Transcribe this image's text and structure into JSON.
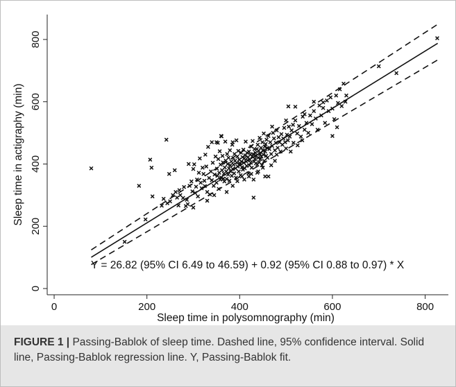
{
  "chart_data": {
    "type": "scatter",
    "xlabel": "Sleep time in polysomnography (min)",
    "ylabel": "Sleep time in actigraphy (min)",
    "xlim": [
      -15,
      850
    ],
    "ylim": [
      -20,
      880
    ],
    "xticks": [
      "0",
      "200",
      "400",
      "600",
      "800"
    ],
    "yticks": [
      "0",
      "200",
      "400",
      "600",
      "800"
    ],
    "grid": false,
    "annotation": "Y = 26.82 (95% CI 6.49 to 46.59) + 0.92 (95% CI 0.88 to 0.97) * X",
    "regression": {
      "intercept": 26.82,
      "slope": 0.92
    },
    "ci_lower": {
      "intercept": 6.49,
      "slope": 0.88
    },
    "ci_upper": {
      "intercept": 46.59,
      "slope": 0.97
    },
    "line_range": [
      80,
      827
    ],
    "points": [
      [
        80,
        386
      ],
      [
        152,
        150
      ],
      [
        183,
        330
      ],
      [
        197,
        222
      ],
      [
        207,
        414
      ],
      [
        210,
        388
      ],
      [
        212,
        296
      ],
      [
        242,
        478
      ],
      [
        248,
        368
      ],
      [
        262,
        310
      ],
      [
        265,
        292
      ],
      [
        268,
        267
      ],
      [
        272,
        300
      ],
      [
        278,
        291
      ],
      [
        284,
        265
      ],
      [
        286,
        285
      ],
      [
        288,
        271
      ],
      [
        292,
        330
      ],
      [
        296,
        344
      ],
      [
        298,
        312
      ],
      [
        300,
        384
      ],
      [
        302,
        399
      ],
      [
        304,
        307
      ],
      [
        306,
        327
      ],
      [
        308,
        350
      ],
      [
        310,
        296
      ],
      [
        312,
        372
      ],
      [
        314,
        418
      ],
      [
        316,
        340
      ],
      [
        318,
        322
      ],
      [
        320,
        388
      ],
      [
        322,
        368
      ],
      [
        324,
        346
      ],
      [
        325,
        329
      ],
      [
        326,
        430
      ],
      [
        328,
        392
      ],
      [
        330,
        310
      ],
      [
        332,
        455
      ],
      [
        334,
        355
      ],
      [
        336,
        302
      ],
      [
        338,
        376
      ],
      [
        340,
        348
      ],
      [
        342,
        404
      ],
      [
        344,
        330
      ],
      [
        346,
        366
      ],
      [
        348,
        424
      ],
      [
        350,
        340
      ],
      [
        351,
        385
      ],
      [
        352,
        362
      ],
      [
        353,
        468
      ],
      [
        354,
        416
      ],
      [
        356,
        372
      ],
      [
        357,
        441
      ],
      [
        358,
        350
      ],
      [
        359,
        398
      ],
      [
        360,
        357
      ],
      [
        361,
        489
      ],
      [
        362,
        380
      ],
      [
        363,
        426
      ],
      [
        364,
        405
      ],
      [
        365,
        353
      ],
      [
        366,
        369
      ],
      [
        367,
        344
      ],
      [
        368,
        389
      ],
      [
        369,
        472
      ],
      [
        370,
        411
      ],
      [
        371,
        376
      ],
      [
        372,
        352
      ],
      [
        373,
        432
      ],
      [
        374,
        400
      ],
      [
        375,
        366
      ],
      [
        376,
        420
      ],
      [
        377,
        386
      ],
      [
        378,
        346
      ],
      [
        379,
        444
      ],
      [
        380,
        396
      ],
      [
        381,
        376
      ],
      [
        382,
        408
      ],
      [
        383,
        362
      ],
      [
        384,
        462
      ],
      [
        385,
        384
      ],
      [
        386,
        420
      ],
      [
        387,
        398
      ],
      [
        388,
        370
      ],
      [
        389,
        432
      ],
      [
        390,
        410
      ],
      [
        391,
        386
      ],
      [
        392,
        356
      ],
      [
        393,
        476
      ],
      [
        394,
        404
      ],
      [
        395,
        424
      ],
      [
        396,
        392
      ],
      [
        397,
        442
      ],
      [
        398,
        376
      ],
      [
        399,
        414
      ],
      [
        400,
        398
      ],
      [
        401,
        402
      ],
      [
        402,
        364
      ],
      [
        403,
        436
      ],
      [
        404,
        408
      ],
      [
        405,
        390
      ],
      [
        406,
        422
      ],
      [
        407,
        382
      ],
      [
        408,
        446
      ],
      [
        409,
        404
      ],
      [
        410,
        418
      ],
      [
        411,
        386
      ],
      [
        412,
        428
      ],
      [
        413,
        472
      ],
      [
        414,
        408
      ],
      [
        415,
        394
      ],
      [
        416,
        436
      ],
      [
        417,
        412
      ],
      [
        418,
        422
      ],
      [
        419,
        370
      ],
      [
        420,
        440
      ],
      [
        421,
        396
      ],
      [
        422,
        414
      ],
      [
        423,
        430
      ],
      [
        424,
        404
      ],
      [
        425,
        456
      ],
      [
        426,
        388
      ],
      [
        427,
        424
      ],
      [
        428,
        474
      ],
      [
        429,
        432
      ],
      [
        430,
        292
      ],
      [
        431,
        408
      ],
      [
        432,
        448
      ],
      [
        433,
        416
      ],
      [
        434,
        436
      ],
      [
        435,
        402
      ],
      [
        436,
        426
      ],
      [
        437,
        448
      ],
      [
        438,
        398
      ],
      [
        439,
        462
      ],
      [
        440,
        420
      ],
      [
        441,
        442
      ],
      [
        442,
        406
      ],
      [
        443,
        484
      ],
      [
        444,
        432
      ],
      [
        445,
        416
      ],
      [
        446,
        452
      ],
      [
        447,
        424
      ],
      [
        448,
        396
      ],
      [
        449,
        470
      ],
      [
        450,
        444
      ],
      [
        451,
        430
      ],
      [
        452,
        498
      ],
      [
        453,
        410
      ],
      [
        454,
        456
      ],
      [
        455,
        440
      ],
      [
        456,
        464
      ],
      [
        457,
        426
      ],
      [
        458,
        478
      ],
      [
        459,
        452
      ],
      [
        460,
        420
      ],
      [
        462,
        490
      ],
      [
        464,
        448
      ],
      [
        466,
        470
      ],
      [
        468,
        432
      ],
      [
        470,
        458
      ],
      [
        472,
        500
      ],
      [
        474,
        482
      ],
      [
        476,
        444
      ],
      [
        478,
        468
      ],
      [
        480,
        508
      ],
      [
        482,
        452
      ],
      [
        484,
        486
      ],
      [
        486,
        470
      ],
      [
        488,
        440
      ],
      [
        490,
        496
      ],
      [
        492,
        462
      ],
      [
        494,
        482
      ],
      [
        496,
        516
      ],
      [
        498,
        470
      ],
      [
        500,
        450
      ],
      [
        502,
        494
      ],
      [
        504,
        476
      ],
      [
        506,
        520
      ],
      [
        508,
        488
      ],
      [
        512,
        508
      ],
      [
        516,
        468
      ],
      [
        520,
        540
      ],
      [
        524,
        498
      ],
      [
        528,
        522
      ],
      [
        532,
        488
      ],
      [
        536,
        552
      ],
      [
        540,
        510
      ],
      [
        544,
        532
      ],
      [
        548,
        500
      ],
      [
        552,
        556
      ],
      [
        556,
        528
      ],
      [
        560,
        570
      ],
      [
        564,
        546
      ],
      [
        568,
        510
      ],
      [
        572,
        588
      ],
      [
        576,
        556
      ],
      [
        580,
        598
      ],
      [
        584,
        532
      ],
      [
        588,
        604
      ],
      [
        592,
        570
      ],
      [
        596,
        614
      ],
      [
        600,
        578
      ],
      [
        604,
        544
      ],
      [
        608,
        620
      ],
      [
        612,
        596
      ],
      [
        616,
        640
      ],
      [
        620,
        586
      ],
      [
        624,
        658
      ],
      [
        628,
        600
      ],
      [
        300,
        260
      ],
      [
        330,
        282
      ],
      [
        260,
        380
      ],
      [
        290,
        400
      ],
      [
        340,
        470
      ],
      [
        350,
        470
      ],
      [
        360,
        490
      ],
      [
        385,
        470
      ],
      [
        405,
        360
      ],
      [
        420,
        360
      ],
      [
        430,
        350
      ],
      [
        470,
        520
      ],
      [
        500,
        540
      ],
      [
        520,
        584
      ],
      [
        540,
        560
      ],
      [
        560,
        600
      ],
      [
        580,
        580
      ],
      [
        600,
        490
      ],
      [
        610,
        518
      ],
      [
        630,
        620
      ],
      [
        462,
        360
      ],
      [
        440,
        376
      ],
      [
        476,
        410
      ],
      [
        232,
        266
      ],
      [
        250,
        280
      ],
      [
        256,
        300
      ],
      [
        244,
        274
      ],
      [
        236,
        288
      ],
      [
        270,
        316
      ],
      [
        280,
        326
      ],
      [
        700,
        714
      ],
      [
        738,
        692
      ],
      [
        826,
        804
      ],
      [
        505,
        585
      ],
      [
        515,
        526
      ],
      [
        535,
        476
      ],
      [
        455,
        360
      ],
      [
        480,
        430
      ],
      [
        510,
        440
      ],
      [
        525,
        460
      ],
      [
        345,
        300
      ],
      [
        355,
        320
      ],
      [
        372,
        310
      ],
      [
        385,
        330
      ],
      [
        395,
        345
      ],
      [
        410,
        350
      ],
      [
        425,
        368
      ],
      [
        438,
        372
      ],
      [
        450,
        388
      ],
      [
        468,
        396
      ]
    ]
  },
  "caption": {
    "label": "FIGURE 1 |",
    "text": " Passing-Bablok of sleep time. Dashed line, 95% confidence interval. Solid line, Passing-Bablok regression line. Y, Passing-Bablok fit."
  }
}
